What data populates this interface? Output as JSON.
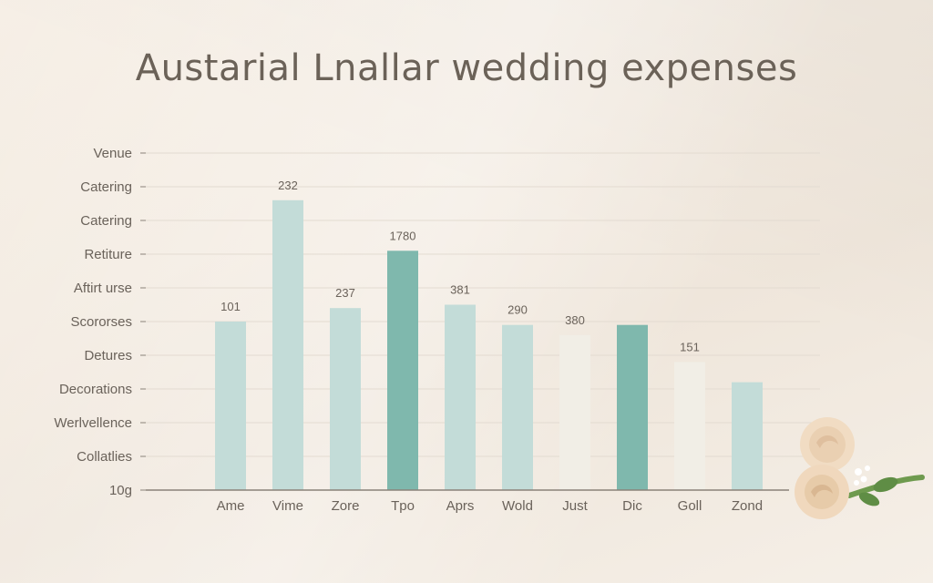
{
  "chart_data": {
    "type": "bar",
    "title": "Austarial Lnallar wedding expenses",
    "categories": [
      "Ame",
      "Vime",
      "Zore",
      "Tpo",
      "Aprs",
      "Wold",
      "Just",
      "Dic",
      "Goll",
      "Zond"
    ],
    "values": [
      5.0,
      8.6,
      5.4,
      7.1,
      5.5,
      4.9,
      4.6,
      4.9,
      3.8,
      3.2
    ],
    "data_labels": [
      "101",
      "232",
      "237",
      "1780",
      "381",
      "290",
      "380",
      "",
      "151",
      ""
    ],
    "y_tick_labels": [
      "10g",
      "Collatlies",
      "Werlvellence",
      "Decorations",
      "Detures",
      "Scororses",
      "Aftirt urse",
      "Retiture",
      "Catering",
      "Catering",
      "Venue"
    ],
    "ylim": [
      0,
      10
    ],
    "grid": true,
    "bar_colors": [
      "#c3dcd8",
      "#c3dcd8",
      "#c3dcd8",
      "#7fb8ad",
      "#c3dcd8",
      "#c3dcd8",
      "#f1eee6",
      "#7fb8ad",
      "#f1eee6",
      "#c3dcd8"
    ]
  }
}
